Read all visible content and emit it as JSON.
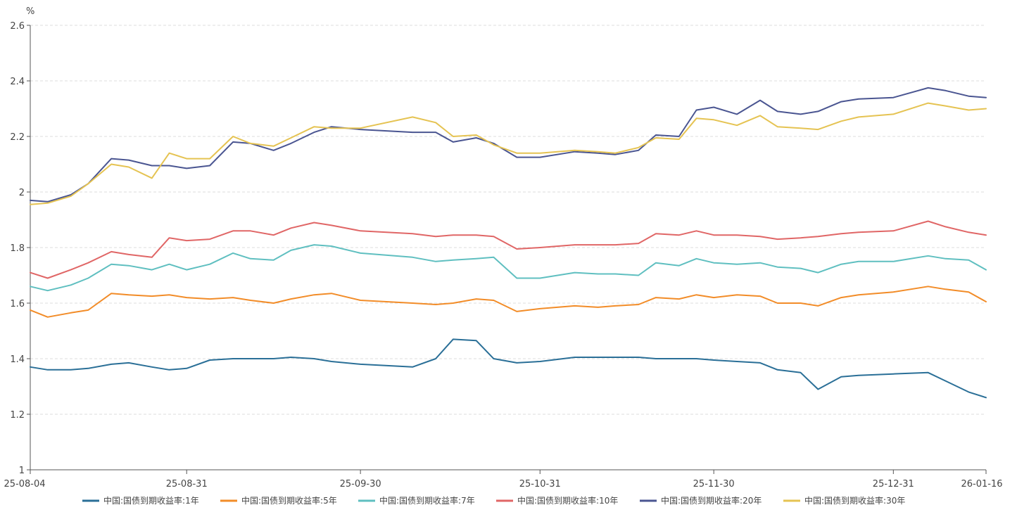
{
  "chart_data": {
    "type": "line",
    "unit": "%",
    "ylim": [
      1,
      2.6
    ],
    "y_ticks": [
      "1",
      "1.2",
      "1.4",
      "1.6",
      "1.8",
      "2",
      "2.2",
      "2.4",
      "2.6"
    ],
    "x_tick_labels": [
      "25-08-04",
      "25-08-31",
      "25-09-30",
      "25-10-31",
      "25-11-30",
      "25-12-31",
      "26-01-16"
    ],
    "grid": "horizontal dashed",
    "legend_position": "bottom",
    "x_dates": [
      "2025-08-04",
      "2025-08-07",
      "2025-08-11",
      "2025-08-14",
      "2025-08-18",
      "2025-08-21",
      "2025-08-25",
      "2025-08-28",
      "2025-08-31",
      "2025-09-04",
      "2025-09-08",
      "2025-09-11",
      "2025-09-15",
      "2025-09-18",
      "2025-09-22",
      "2025-09-25",
      "2025-09-30",
      "2025-10-09",
      "2025-10-13",
      "2025-10-16",
      "2025-10-20",
      "2025-10-23",
      "2025-10-27",
      "2025-10-31",
      "2025-11-06",
      "2025-11-10",
      "2025-11-13",
      "2025-11-17",
      "2025-11-20",
      "2025-11-24",
      "2025-11-27",
      "2025-11-30",
      "2025-12-04",
      "2025-12-08",
      "2025-12-11",
      "2025-12-15",
      "2025-12-18",
      "2025-12-22",
      "2025-12-25",
      "2025-12-31",
      "2026-01-06",
      "2026-01-09",
      "2026-01-13",
      "2026-01-16"
    ],
    "series": [
      {
        "name": "中国:国债到期收益率:1年",
        "color": "#2a6f97",
        "values": [
          1.37,
          1.36,
          1.36,
          1.365,
          1.38,
          1.385,
          1.37,
          1.36,
          1.365,
          1.395,
          1.4,
          1.4,
          1.4,
          1.405,
          1.4,
          1.39,
          1.38,
          1.37,
          1.4,
          1.47,
          1.465,
          1.4,
          1.385,
          1.39,
          1.405,
          1.405,
          1.405,
          1.405,
          1.4,
          1.4,
          1.4,
          1.395,
          1.39,
          1.385,
          1.36,
          1.35,
          1.29,
          1.335,
          1.34,
          1.345,
          1.35,
          1.32,
          1.28,
          1.26
        ]
      },
      {
        "name": "中国:国债到期收益率:5年",
        "color": "#f28c28",
        "values": [
          1.575,
          1.55,
          1.565,
          1.575,
          1.635,
          1.63,
          1.625,
          1.63,
          1.62,
          1.615,
          1.62,
          1.61,
          1.6,
          1.615,
          1.63,
          1.635,
          1.61,
          1.6,
          1.595,
          1.6,
          1.615,
          1.61,
          1.57,
          1.58,
          1.59,
          1.585,
          1.59,
          1.595,
          1.62,
          1.615,
          1.63,
          1.62,
          1.63,
          1.625,
          1.6,
          1.6,
          1.59,
          1.62,
          1.63,
          1.64,
          1.66,
          1.65,
          1.64,
          1.605
        ]
      },
      {
        "name": "中国:国债到期收益率:7年",
        "color": "#5fbfc0",
        "values": [
          1.66,
          1.645,
          1.665,
          1.69,
          1.74,
          1.735,
          1.72,
          1.74,
          1.72,
          1.74,
          1.78,
          1.76,
          1.755,
          1.79,
          1.81,
          1.805,
          1.78,
          1.765,
          1.75,
          1.755,
          1.76,
          1.765,
          1.69,
          1.69,
          1.71,
          1.705,
          1.705,
          1.7,
          1.745,
          1.735,
          1.76,
          1.745,
          1.74,
          1.745,
          1.73,
          1.725,
          1.71,
          1.74,
          1.75,
          1.75,
          1.77,
          1.76,
          1.755,
          1.72
        ]
      },
      {
        "name": "中国:国债到期收益率:10年",
        "color": "#e06666",
        "values": [
          1.71,
          1.69,
          1.72,
          1.745,
          1.785,
          1.775,
          1.765,
          1.835,
          1.825,
          1.83,
          1.86,
          1.86,
          1.845,
          1.87,
          1.89,
          1.88,
          1.86,
          1.85,
          1.84,
          1.845,
          1.845,
          1.84,
          1.795,
          1.8,
          1.81,
          1.81,
          1.81,
          1.815,
          1.85,
          1.845,
          1.86,
          1.845,
          1.845,
          1.84,
          1.83,
          1.835,
          1.84,
          1.85,
          1.855,
          1.86,
          1.895,
          1.875,
          1.855,
          1.845
        ]
      },
      {
        "name": "中国:国债到期收益率:20年",
        "color": "#4a5591",
        "values": [
          1.97,
          1.965,
          1.99,
          2.03,
          2.12,
          2.115,
          2.095,
          2.095,
          2.085,
          2.095,
          2.18,
          2.175,
          2.15,
          2.175,
          2.215,
          2.235,
          2.225,
          2.215,
          2.215,
          2.18,
          2.195,
          2.175,
          2.125,
          2.125,
          2.145,
          2.14,
          2.135,
          2.15,
          2.205,
          2.2,
          2.295,
          2.305,
          2.28,
          2.33,
          2.29,
          2.28,
          2.29,
          2.325,
          2.335,
          2.34,
          2.375,
          2.365,
          2.345,
          2.34
        ]
      },
      {
        "name": "中国:国债到期收益率:30年",
        "color": "#e5c352",
        "values": [
          1.955,
          1.96,
          1.985,
          2.03,
          2.1,
          2.09,
          2.05,
          2.14,
          2.12,
          2.12,
          2.2,
          2.175,
          2.165,
          2.195,
          2.235,
          2.23,
          2.23,
          2.27,
          2.25,
          2.2,
          2.205,
          2.17,
          2.14,
          2.14,
          2.15,
          2.145,
          2.14,
          2.16,
          2.195,
          2.19,
          2.265,
          2.26,
          2.24,
          2.275,
          2.235,
          2.23,
          2.225,
          2.255,
          2.27,
          2.28,
          2.32,
          2.31,
          2.295,
          2.3
        ]
      }
    ]
  }
}
